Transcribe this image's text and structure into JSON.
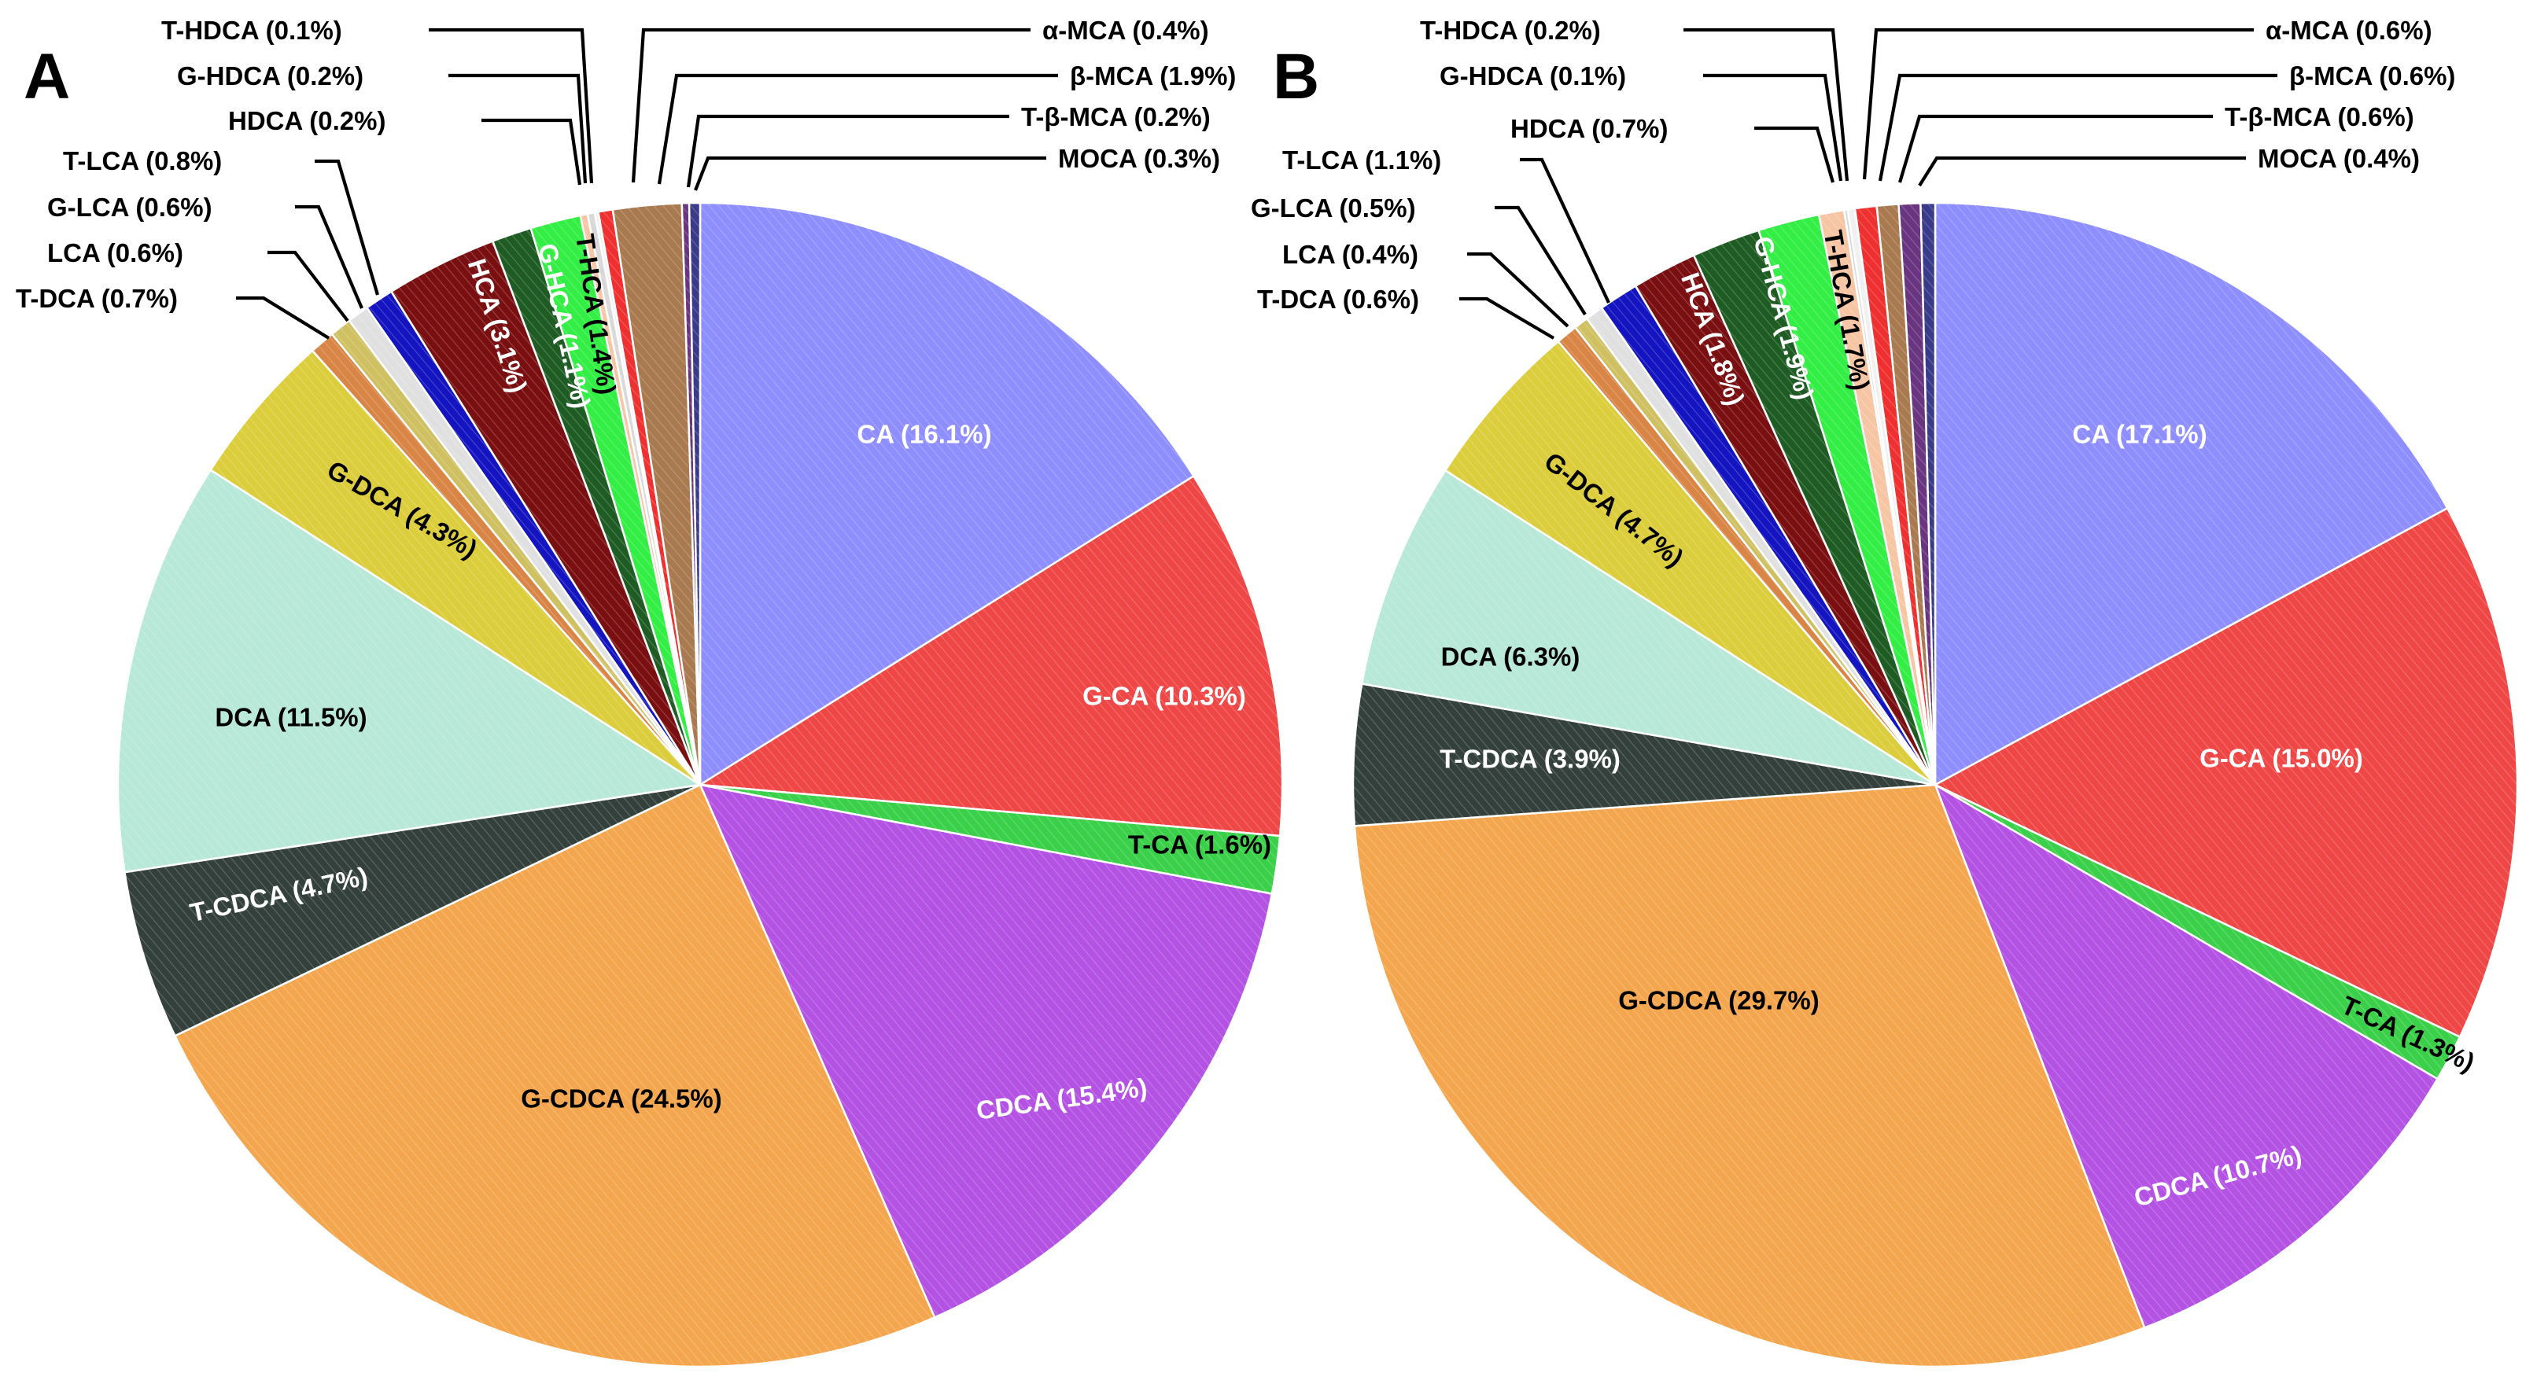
{
  "chart_data": [
    {
      "type": "pie",
      "panel": "A",
      "slices": [
        {
          "label": "CA (16.1%)",
          "value": 16.1,
          "color": "#8e8eff",
          "text_color": "#ffffff"
        },
        {
          "label": "G-CA (10.3%)",
          "value": 10.3,
          "color": "#ef4646",
          "text_color": "#ffffff"
        },
        {
          "label": "T-CA (1.6%)",
          "value": 1.6,
          "color": "#3bd04a",
          "text_color": "#000000"
        },
        {
          "label": "CDCA (15.4%)",
          "value": 15.4,
          "color": "#b452e4",
          "text_color": "#ffffff"
        },
        {
          "label": "G-CDCA (24.5%)",
          "value": 24.5,
          "color": "#f4a64e",
          "text_color": "#000000"
        },
        {
          "label": "T-CDCA  (4.7%)",
          "value": 4.7,
          "color": "#33403c",
          "text_color": "#ffffff"
        },
        {
          "label": "DCA (11.5%)",
          "value": 11.5,
          "color": "#b7e8d8",
          "text_color": "#000000"
        },
        {
          "label": "G-DCA (4.3%)",
          "value": 4.3,
          "color": "#dccd3c",
          "text_color": "#000000"
        },
        {
          "label": "T-DCA (0.7%)",
          "value": 0.7,
          "color": "#d98546",
          "text_color": "#000000"
        },
        {
          "label": "LCA (0.6%)",
          "value": 0.6,
          "color": "#cfc062",
          "text_color": "#000000"
        },
        {
          "label": "G-LCA (0.6%)",
          "value": 0.6,
          "color": "#e0e0e0",
          "text_color": "#000000"
        },
        {
          "label": "T-LCA (0.8%)",
          "value": 0.8,
          "color": "#1414c0",
          "text_color": "#000000"
        },
        {
          "label": "HCA (3.1%)",
          "value": 3.1,
          "color": "#7a0f12",
          "text_color": "#ffffff"
        },
        {
          "label": "G-HCA (1.1%)",
          "value": 1.1,
          "color": "#1e5c24",
          "text_color": "#ffffff"
        },
        {
          "label": "T-HCA (1.4%)",
          "value": 1.4,
          "color": "#33ee44",
          "text_color": "#000000"
        },
        {
          "label": "HDCA (0.2%)",
          "value": 0.2,
          "color": "#f6c6a4",
          "text_color": "#000000"
        },
        {
          "label": "G-HDCA (0.2%)",
          "value": 0.2,
          "color": "#d8d8d8",
          "text_color": "#000000"
        },
        {
          "label": "T-HDCA (0.1%)",
          "value": 0.1,
          "color": "#f0f0f0",
          "text_color": "#000000"
        },
        {
          "label": "α-MCA (0.4%)",
          "value": 0.4,
          "color": "#ee3030",
          "text_color": "#000000"
        },
        {
          "label": "β-MCA (1.9%)",
          "value": 1.9,
          "color": "#a97a50",
          "text_color": "#000000"
        },
        {
          "label": "T-β-MCA (0.2%)",
          "value": 0.2,
          "color": "#6a3580",
          "text_color": "#000000"
        },
        {
          "label": "MOCA (0.3%)",
          "value": 0.3,
          "color": "#3a3a8a",
          "text_color": "#000000"
        }
      ]
    },
    {
      "type": "pie",
      "panel": "B",
      "slices": [
        {
          "label": "CA (17.1%)",
          "value": 17.1,
          "color": "#8e8eff",
          "text_color": "#ffffff"
        },
        {
          "label": "G-CA (15.0%)",
          "value": 15.0,
          "color": "#ef4646",
          "text_color": "#ffffff"
        },
        {
          "label": "T-CA (1.3%)",
          "value": 1.3,
          "color": "#3bd04a",
          "text_color": "#000000"
        },
        {
          "label": "CDCA (10.7%)",
          "value": 10.7,
          "color": "#b452e4",
          "text_color": "#ffffff"
        },
        {
          "label": "G-CDCA (29.7%)",
          "value": 29.7,
          "color": "#f4a64e",
          "text_color": "#000000"
        },
        {
          "label": "T-CDCA  (3.9%)",
          "value": 3.9,
          "color": "#33403c",
          "text_color": "#ffffff"
        },
        {
          "label": "DCA (6.3%)",
          "value": 6.3,
          "color": "#b7e8d8",
          "text_color": "#000000"
        },
        {
          "label": "G-DCA (4.7%)",
          "value": 4.7,
          "color": "#dccd3c",
          "text_color": "#000000"
        },
        {
          "label": "T-DCA (0.6%)",
          "value": 0.6,
          "color": "#d98546",
          "text_color": "#000000"
        },
        {
          "label": "LCA (0.4%)",
          "value": 0.4,
          "color": "#cfc062",
          "text_color": "#000000"
        },
        {
          "label": "G-LCA (0.5%)",
          "value": 0.5,
          "color": "#e0e0e0",
          "text_color": "#000000"
        },
        {
          "label": "T-LCA (1.1%)",
          "value": 1.1,
          "color": "#1414c0",
          "text_color": "#000000"
        },
        {
          "label": "HCA (1.8%)",
          "value": 1.8,
          "color": "#7a0f12",
          "text_color": "#ffffff"
        },
        {
          "label": "G-HCA (1.9%)",
          "value": 1.9,
          "color": "#1e5c24",
          "text_color": "#ffffff"
        },
        {
          "label": "T-HCA (1.7%)",
          "value": 1.7,
          "color": "#33ee44",
          "text_color": "#000000"
        },
        {
          "label": "HDCA (0.7%)",
          "value": 0.7,
          "color": "#f6c6a4",
          "text_color": "#000000"
        },
        {
          "label": "G-HDCA (0.1%)",
          "value": 0.1,
          "color": "#d8d8d8",
          "text_color": "#000000"
        },
        {
          "label": "T-HDCA (0.2%)",
          "value": 0.2,
          "color": "#f0f0f0",
          "text_color": "#000000"
        },
        {
          "label": "α-MCA (0.6%)",
          "value": 0.6,
          "color": "#ee3030",
          "text_color": "#000000"
        },
        {
          "label": "β-MCA (0.6%)",
          "value": 0.6,
          "color": "#a97a50",
          "text_color": "#000000"
        },
        {
          "label": "T-β-MCA (0.6%)",
          "value": 0.6,
          "color": "#6a3580",
          "text_color": "#000000"
        },
        {
          "label": "MOCA (0.4%)",
          "value": 0.4,
          "color": "#3a3a8a",
          "text_color": "#000000"
        }
      ]
    }
  ]
}
